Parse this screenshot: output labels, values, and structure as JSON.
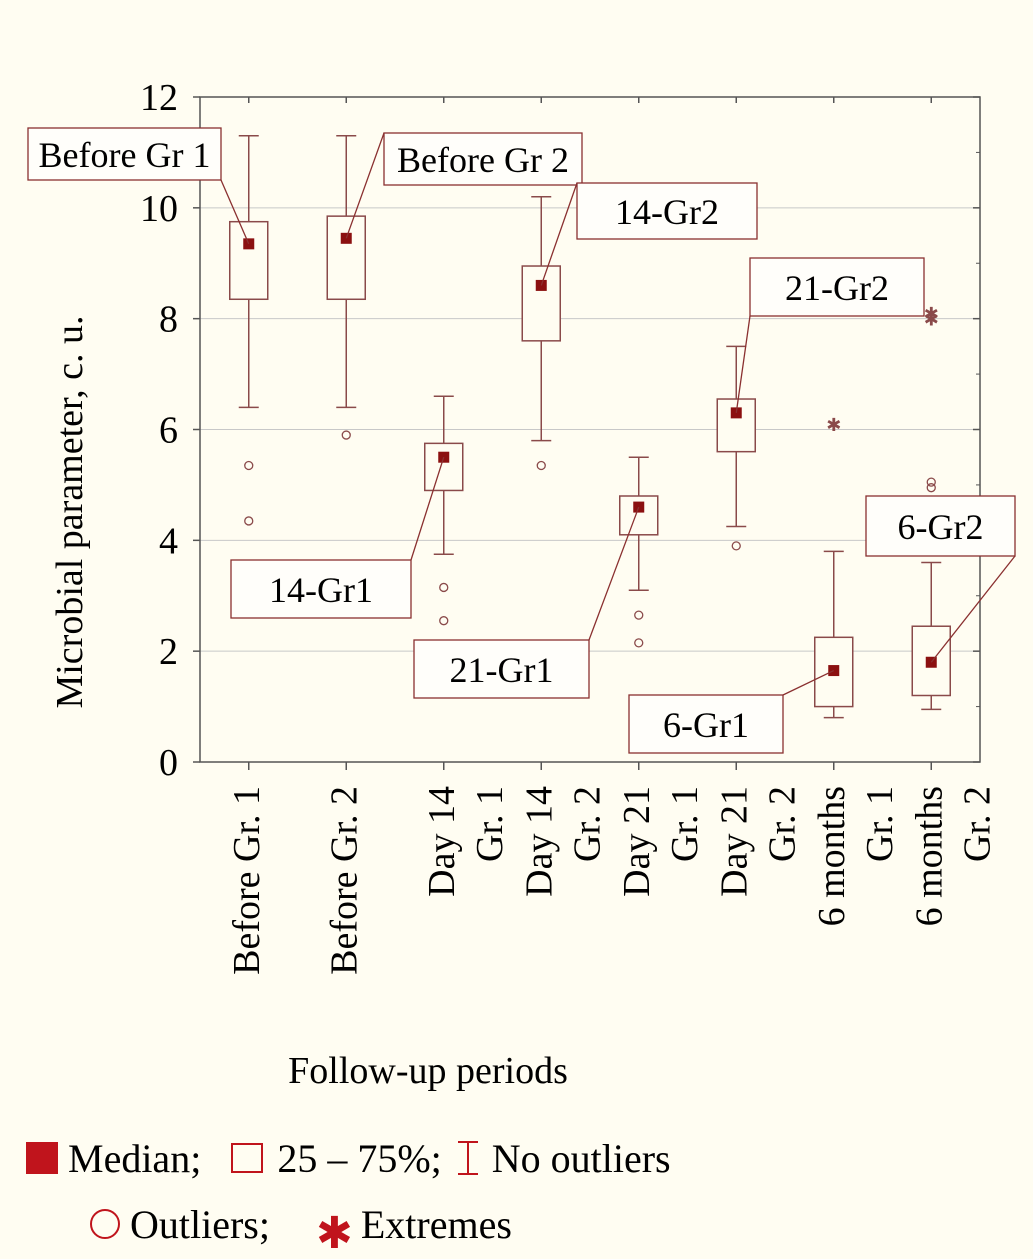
{
  "chart_data": {
    "type": "boxplot",
    "ylabel": "Microbial parameter, c. u.",
    "xlabel": "Follow-up periods",
    "ylim": [
      0,
      12
    ],
    "yticks": [
      "0",
      "2",
      "4",
      "6",
      "8",
      "10",
      "12"
    ],
    "grid": true,
    "categories": [
      {
        "line1": "Before Gr. 1",
        "line2": ""
      },
      {
        "line1": "Before Gr. 2",
        "line2": ""
      },
      {
        "line1": "Day 14",
        "line2": "Gr. 1"
      },
      {
        "line1": "Day 14",
        "line2": "Gr. 2"
      },
      {
        "line1": "Day 21",
        "line2": "Gr. 1"
      },
      {
        "line1": "Day 21",
        "line2": "Gr. 2"
      },
      {
        "line1": "6 months",
        "line2": "Gr. 1"
      },
      {
        "line1": "6 months",
        "line2": "Gr. 2"
      }
    ],
    "boxes": [
      {
        "label": "Before Gr 1",
        "median": 9.35,
        "q1": 8.35,
        "q3": 9.75,
        "whisker_low": 6.4,
        "whisker_high": 11.3,
        "outliers": [
          5.35,
          4.35
        ],
        "extremes": []
      },
      {
        "label": "Before Gr 2",
        "median": 9.45,
        "q1": 8.35,
        "q3": 9.85,
        "whisker_low": 6.4,
        "whisker_high": 11.3,
        "outliers": [
          5.9
        ],
        "extremes": []
      },
      {
        "label": "14-Gr1",
        "median": 5.5,
        "q1": 4.9,
        "q3": 5.75,
        "whisker_low": 3.75,
        "whisker_high": 6.6,
        "outliers": [
          3.15,
          2.55
        ],
        "extremes": []
      },
      {
        "label": "14-Gr2",
        "median": 8.6,
        "q1": 7.6,
        "q3": 8.95,
        "whisker_low": 5.8,
        "whisker_high": 10.2,
        "outliers": [
          5.35
        ],
        "extremes": []
      },
      {
        "label": "21-Gr1",
        "median": 4.6,
        "q1": 4.1,
        "q3": 4.8,
        "whisker_low": 3.1,
        "whisker_high": 5.5,
        "outliers": [
          2.65,
          2.15
        ],
        "extremes": []
      },
      {
        "label": "21-Gr2",
        "median": 6.3,
        "q1": 5.6,
        "q3": 6.55,
        "whisker_low": 4.25,
        "whisker_high": 7.5,
        "outliers": [
          3.9
        ],
        "extremes": []
      },
      {
        "label": "6-Gr1",
        "median": 1.65,
        "q1": 1.0,
        "q3": 2.25,
        "whisker_low": 0.8,
        "whisker_high": 3.8,
        "outliers": [],
        "extremes": [
          6.1
        ]
      },
      {
        "label": "6-Gr2",
        "median": 1.8,
        "q1": 1.2,
        "q3": 2.45,
        "whisker_low": 0.95,
        "whisker_high": 3.6,
        "outliers": [
          5.05,
          4.95
        ],
        "extremes": [
          8.1,
          8.0
        ]
      }
    ]
  },
  "legend": {
    "median": "Median;",
    "box": "25 – 75%;",
    "whisker": "No outliers",
    "outliers": "Outliers;",
    "extremes": "Extremes"
  },
  "colors": {
    "marker": "#8b1010",
    "box": "#8a4a4a",
    "legend_accent": "#c0141c",
    "grid": "#c8c8c8",
    "background": "#fffdf2"
  }
}
